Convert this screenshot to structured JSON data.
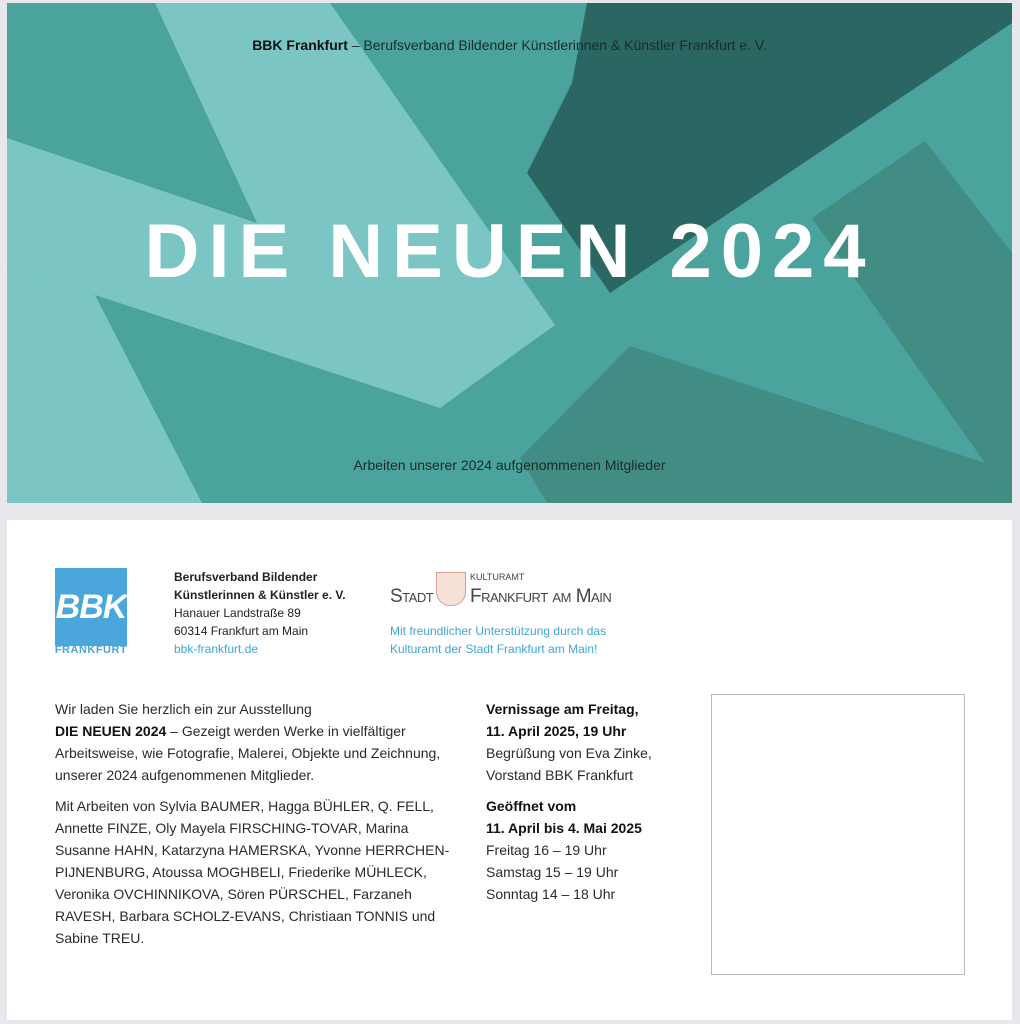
{
  "front": {
    "header_bold": "BBK Frankfurt",
    "header_rest": " – Berufsverband Bildender Künstlerinnen & Künstler Frankfurt e. V.",
    "title": "DIE NEUEN 2024",
    "subtitle": "Arbeiten unserer 2024 aufgenommenen Mitglieder",
    "colors": {
      "base": "#4aa39c",
      "light": "#7bc5c5",
      "dark": "#2a6762",
      "mid": "#418d84"
    }
  },
  "back": {
    "logo": {
      "text": "BBK",
      "subtext": "FRANKFURT",
      "color": "#4ba6dc"
    },
    "org": {
      "name_line1": "Berufsverband Bildender",
      "name_line2": "Künstlerinnen & Künstler e. V.",
      "street": "Hanauer Landstraße 89",
      "city": "60314 Frankfurt am Main",
      "website": "bbk-frankfurt.de"
    },
    "sponsor_logo": {
      "stadt": "Stadt",
      "kulturamt": "Kulturamt",
      "frankfurt": "Frankfurt am Main"
    },
    "support": {
      "line1": "Mit freundlicher Unterstützung durch das",
      "line2": "Kulturamt der Stadt Frankfurt am Main!"
    },
    "invitation": {
      "intro": "Wir laden Sie herzlich ein zur Ausstellung",
      "title": "DIE NEUEN 2024",
      "text": " – Gezeigt werden Werke in vielfältiger Arbeitsweise, wie Fotografie, Malerei, Objekte und Zeichnung, unserer 2024 aufgenommenen Mitglieder.",
      "artists": "Mit Arbeiten von Sylvia BAUMER, Hagga BÜHLER, Q. FELL, Annette FINZE, Oly Mayela FIRSCHING-TOVAR, Marina Susanne HAHN, Katarzyna HAMERSKA, Yvonne HERRCHEN-PIJNENBURG, Atoussa MOGHBELI, Friederike MÜHLECK, Veronika OVCHINNIKOVA, Sören PÜRSCHEL, Farzaneh RAVESH, Barbara SCHOLZ-EVANS, Christiaan TONNIS und Sabine TREU."
    },
    "event": {
      "vernissage_line1": "Vernissage am Freitag,",
      "vernissage_line2": "11. April 2025, 19 Uhr",
      "greeting_line1": "Begrüßung von Eva Zinke,",
      "greeting_line2": "Vorstand BBK Frankfurt",
      "open_line1": "Geöffnet vom",
      "open_line2": "11. April bis 4. Mai 2025",
      "hours": [
        "Freitag 16 – 19 Uhr",
        "Samstag 15 – 19 Uhr",
        "Sonntag 14 – 18 Uhr"
      ]
    }
  }
}
